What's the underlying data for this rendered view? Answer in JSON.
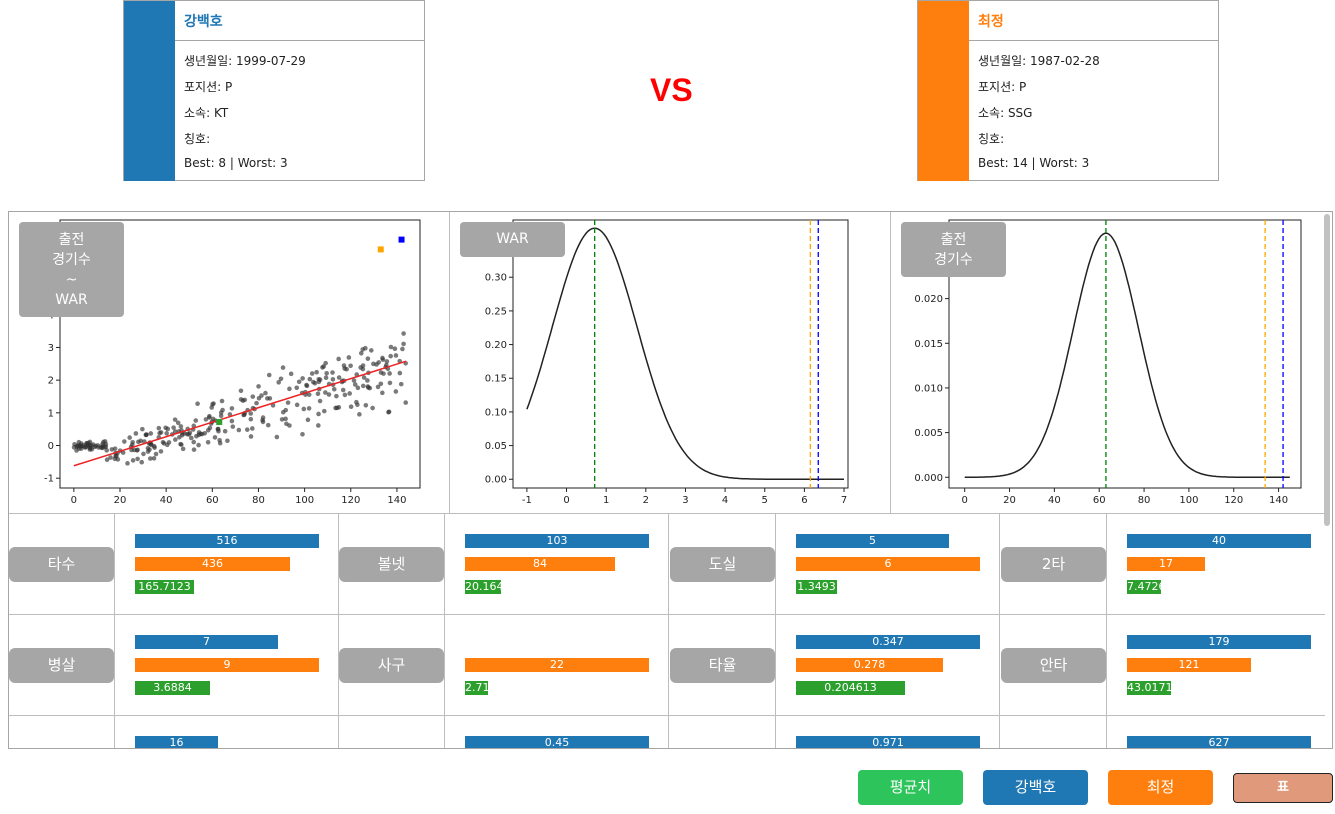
{
  "player1": {
    "name": "강백호",
    "color": "#1f77b4",
    "birth": "생년월일: 1999-07-29",
    "position": "포지션: P",
    "team": "소속: KT",
    "title": "칭호:",
    "best_worst": "Best: 8 | Worst: 3"
  },
  "player2": {
    "name": "최정",
    "color": "#ff7f0e",
    "birth": "생년월일: 1987-02-28",
    "position": "포지션: P",
    "team": "소속: SSG",
    "title": "칭호:",
    "best_worst": "Best: 14 | Worst: 3"
  },
  "vs_label": "VS",
  "chart_labels": {
    "scatter_lines": [
      "출전",
      "경기수",
      "~",
      "WAR"
    ],
    "war_dist": "WAR",
    "games_dist_lines": [
      "출전",
      "경기수"
    ]
  },
  "chart_data": [
    {
      "type": "scatter",
      "xticks": [
        "0",
        "20",
        "40",
        "60",
        "80",
        "100",
        "120",
        "140"
      ],
      "yticks": [
        "-1",
        "0",
        "1",
        "2",
        "3",
        "4"
      ],
      "xlim": [
        -6,
        150
      ],
      "ylim": [
        -1.3,
        6.9
      ],
      "trend_line": {
        "x": [
          0,
          144
        ],
        "y": [
          -0.62,
          2.58
        ]
      },
      "highlight_points": [
        {
          "x": 142,
          "y": 6.3,
          "color": "#0000ff"
        },
        {
          "x": 133,
          "y": 6.0,
          "color": "#ffa500"
        },
        {
          "x": 63,
          "y": 0.72,
          "color": "#2ca02c"
        }
      ],
      "series_color": "#333333"
    },
    {
      "type": "line",
      "xticks": [
        "-1",
        "0",
        "1",
        "2",
        "3",
        "4",
        "5",
        "6",
        "7"
      ],
      "yticks": [
        "0.00",
        "0.05",
        "0.10",
        "0.15",
        "0.20",
        "0.25",
        "0.30",
        "0.35"
      ],
      "xlim": [
        -1.35,
        7.1
      ],
      "ylim": [
        -0.013,
        0.385
      ],
      "mean": 0.71,
      "sd": 1.07,
      "x_range": [
        -1,
        7
      ],
      "vlines": [
        {
          "x": 0.71,
          "color": "#008000"
        },
        {
          "x": 6.15,
          "color": "#ffa500"
        },
        {
          "x": 6.35,
          "color": "#0000ff"
        }
      ]
    },
    {
      "type": "line",
      "xticks": [
        "0",
        "20",
        "40",
        "60",
        "80",
        "100",
        "120",
        "140"
      ],
      "yticks": [
        "0.000",
        "0.005",
        "0.010",
        "0.015",
        "0.020",
        "0.025"
      ],
      "xlim": [
        -7,
        150
      ],
      "ylim": [
        -0.0012,
        0.0288
      ],
      "mean": 63,
      "sd": 14.6,
      "x_range": [
        0,
        145
      ],
      "vlines": [
        {
          "x": 63,
          "color": "#008000"
        },
        {
          "x": 134,
          "color": "#ffa500"
        },
        {
          "x": 142,
          "color": "#0000ff"
        }
      ]
    }
  ],
  "stats": [
    [
      {
        "label": "타수",
        "values": [
          "516",
          "436",
          "165.7123"
        ],
        "fracs": [
          1.0,
          0.845,
          0.321
        ]
      },
      {
        "label": "볼넷",
        "values": [
          "103",
          "84",
          "20.1644"
        ],
        "fracs": [
          1.0,
          0.816,
          0.196
        ]
      },
      {
        "label": "도실",
        "values": [
          "5",
          "6",
          "1.3493"
        ],
        "fracs": [
          0.833,
          1.0,
          0.225
        ]
      },
      {
        "label": "2타",
        "values": [
          "40",
          "17",
          "7.4726"
        ],
        "fracs": [
          1.0,
          0.425,
          0.187
        ]
      }
    ],
    [
      {
        "label": "병살",
        "values": [
          "7",
          "9",
          "3.6884"
        ],
        "fracs": [
          0.778,
          1.0,
          0.41
        ]
      },
      {
        "label": "사구",
        "values": [
          "",
          "22",
          "2.712"
        ],
        "fracs": [
          0.0,
          1.0,
          0.123
        ]
      },
      {
        "label": "타율",
        "values": [
          "0.347",
          "0.278",
          "0.204613"
        ],
        "fracs": [
          1.0,
          0.801,
          0.59
        ]
      },
      {
        "label": "안타",
        "values": [
          "179",
          "121",
          "43.0171"
        ],
        "fracs": [
          1.0,
          0.676,
          0.24
        ]
      }
    ],
    [
      {
        "label": "",
        "values": [
          "16",
          "",
          ""
        ],
        "fracs": [
          0.45,
          0.0,
          0.0
        ]
      },
      {
        "label": "",
        "values": [
          "0.45",
          "",
          ""
        ],
        "fracs": [
          1.0,
          0.0,
          0.0
        ]
      },
      {
        "label": "",
        "values": [
          "0.971",
          "",
          ""
        ],
        "fracs": [
          1.0,
          0.0,
          0.0
        ]
      },
      {
        "label": "",
        "values": [
          "627",
          "",
          ""
        ],
        "fracs": [
          1.0,
          0.0,
          0.0
        ]
      }
    ]
  ],
  "buttons": {
    "average": "평균치",
    "player1": "강백호",
    "player2": "최정",
    "table": "표"
  }
}
